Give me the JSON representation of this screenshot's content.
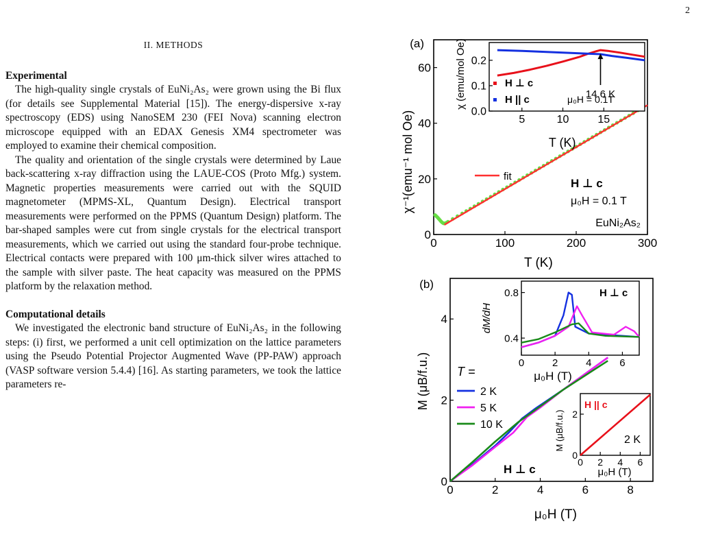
{
  "page_number": "2",
  "section_title": "II.   METHODS",
  "experimental": {
    "heading": "Experimental",
    "paragraphs": [
      "The high-quality single crystals of EuNi₂As₂ were grown using the Bi flux (for details see Supplemental Material [15]). The energy-dispersive x-ray spectroscopy (EDS) using NanoSEM 230 (FEI Nova) scanning electron microscope equipped with an EDAX Genesis XM4 spectrometer was employed to examine their chemical composition.",
      "The quality and orientation of the single crystals were determined by Laue back-scattering x-ray diffraction using the LAUE-COS (Proto Mfg.) system. Magnetic properties measurements were carried out with the SQUID magnetometer (MPMS-XL, Quantum Design). Electrical transport measurements were performed on the PPMS (Quantum Design) platform. The bar-shaped samples were cut from single crystals for the electrical transport measurements, which we carried out using the standard four-probe technique. Electrical contacts were prepared with 100 μm-thick silver wires attached to the sample with silver paste. The heat capacity was measured on the PPMS platform by the relaxation method."
    ]
  },
  "computational": {
    "heading": "Computational details",
    "paragraphs": [
      "We investigated the electronic band structure of EuNi₂As₂ in the following steps: (i) first, we performed a unit cell optimization on the lattice parameters using the Pseudo Potential Projector Augmented Wave (PP-PAW) approach (VASP software version 5.4.4) [16]. As starting parameters, we took the lattice parameters re-"
    ]
  },
  "colors": {
    "hperp": "#e8101a",
    "hpar": "#1430e0",
    "k2": "#1430e0",
    "k5": "#f020f0",
    "k10": "#1a8a1a",
    "fit": "#ff3030",
    "data": "#66dd44"
  },
  "chart_data": [
    {
      "type": "line",
      "panel_label": "(a)",
      "xlabel": "T (K)",
      "ylabel": "χ⁻¹(emu⁻¹ mol Oe)",
      "xlim": [
        0,
        300
      ],
      "ylim": [
        0,
        70
      ],
      "xticks": [
        "0",
        "100",
        "200",
        "300"
      ],
      "yticks": [
        "0",
        "20",
        "40",
        "60"
      ],
      "legend": [
        "fit"
      ],
      "annotations": [
        "H ⊥ c",
        "μ₀H = 0.1 T",
        "EuNi₂As₂"
      ],
      "series": [
        {
          "name": "fit",
          "x": [
            15,
            300
          ],
          "y": [
            3.5,
            46.5
          ]
        },
        {
          "x": [
            2,
            4,
            6,
            8,
            10,
            12,
            14,
            16,
            20,
            40,
            80,
            120,
            160,
            200,
            240,
            280,
            300
          ],
          "y": [
            7.0,
            6.5,
            6.0,
            5.4,
            4.8,
            4.3,
            4.0,
            4.0,
            4.6,
            7.6,
            13.6,
            19.6,
            25.6,
            31.6,
            37.6,
            43.6,
            46.6
          ]
        }
      ],
      "inset": {
        "xlabel": "T (K)",
        "ylabel": "χ (emu/mol Oe)",
        "xlim": [
          1,
          20
        ],
        "ylim": [
          0,
          0.27
        ],
        "xticks": [
          "5",
          "10",
          "15"
        ],
        "yticks": [
          "0.0",
          "0.1",
          "0.2"
        ],
        "annotations": [
          "14.6 K",
          "μ₀H = 0.1T"
        ],
        "series": [
          {
            "name": "H ⊥ c",
            "x": [
              2,
              4,
              6,
              8,
              10,
              12,
              13,
              14,
              14.6,
              15.5,
              17,
              18.5,
              20
            ],
            "y": [
              0.14,
              0.15,
              0.163,
              0.178,
              0.195,
              0.213,
              0.225,
              0.235,
              0.24,
              0.237,
              0.23,
              0.222,
              0.214
            ]
          },
          {
            "name": "H || c",
            "x": [
              2,
              5,
              8,
              11,
              13,
              14.6,
              16,
              18,
              20
            ],
            "y": [
              0.24,
              0.237,
              0.233,
              0.229,
              0.226,
              0.224,
              0.217,
              0.209,
              0.2
            ]
          }
        ]
      }
    },
    {
      "type": "line",
      "panel_label": "(b)",
      "xlabel": "μ₀H (T)",
      "ylabel": "M (μB/f.u.)",
      "xlim": [
        0,
        9
      ],
      "ylim": [
        0,
        5
      ],
      "xticks": [
        "0",
        "2",
        "4",
        "6",
        "8"
      ],
      "yticks": [
        "0",
        "2",
        "4"
      ],
      "legend_title": "T =",
      "annotations": [
        "H ⊥ c"
      ],
      "series": [
        {
          "name": "2 K",
          "x": [
            0,
            1,
            2,
            2.6,
            3.2,
            3.8,
            5,
            7
          ],
          "y": [
            0,
            0.42,
            0.88,
            1.2,
            1.55,
            1.8,
            2.25,
            3.05
          ]
        },
        {
          "name": "5 K",
          "x": [
            0,
            1,
            2,
            2.8,
            3.4,
            4,
            5,
            7
          ],
          "y": [
            0,
            0.4,
            0.85,
            1.2,
            1.58,
            1.82,
            2.25,
            3.05
          ]
        },
        {
          "name": "10 K",
          "x": [
            0,
            1,
            2,
            3,
            4,
            5,
            7
          ],
          "y": [
            0,
            0.48,
            0.98,
            1.45,
            1.85,
            2.25,
            2.97
          ]
        }
      ],
      "inset_top": {
        "xlabel": "μ₀H (T)",
        "ylabel": "dM/dH",
        "xlim": [
          0,
          7
        ],
        "ylim": [
          0.25,
          0.9
        ],
        "xticks": [
          "0",
          "2",
          "4",
          "6"
        ],
        "yticks": [
          "0.4",
          "0.8"
        ],
        "annotations": [
          "H ⊥ c"
        ],
        "series": [
          {
            "name": "2 K",
            "x": [
              0,
              1,
              2,
              2.5,
              2.8,
              3.0,
              3.2,
              4,
              5,
              7
            ],
            "y": [
              0.32,
              0.36,
              0.42,
              0.6,
              0.8,
              0.78,
              0.5,
              0.44,
              0.43,
              0.41
            ]
          },
          {
            "name": "5 K",
            "x": [
              0,
              1,
              2,
              2.8,
              3.3,
              3.6,
              4.2,
              5.5,
              6.2,
              6.7,
              7
            ],
            "y": [
              0.32,
              0.36,
              0.42,
              0.5,
              0.68,
              0.6,
              0.45,
              0.43,
              0.5,
              0.46,
              0.41
            ]
          },
          {
            "name": "10 K",
            "x": [
              0,
              1,
              2,
              3,
              3.4,
              4,
              5,
              7
            ],
            "y": [
              0.36,
              0.39,
              0.45,
              0.52,
              0.53,
              0.44,
              0.42,
              0.41
            ]
          }
        ]
      },
      "inset_bottom": {
        "xlabel": "μ₀H (T)",
        "ylabel": "M (μB/f.u.)",
        "xlim": [
          0,
          7
        ],
        "ylim": [
          0,
          3
        ],
        "xticks": [
          "0",
          "2",
          "4",
          "6"
        ],
        "yticks": [
          "0",
          "2"
        ],
        "annotations": [
          "H || c",
          "2 K"
        ],
        "series": [
          {
            "name": "2 K",
            "x": [
              0,
              7
            ],
            "y": [
              0,
              2.95
            ]
          }
        ]
      }
    }
  ]
}
